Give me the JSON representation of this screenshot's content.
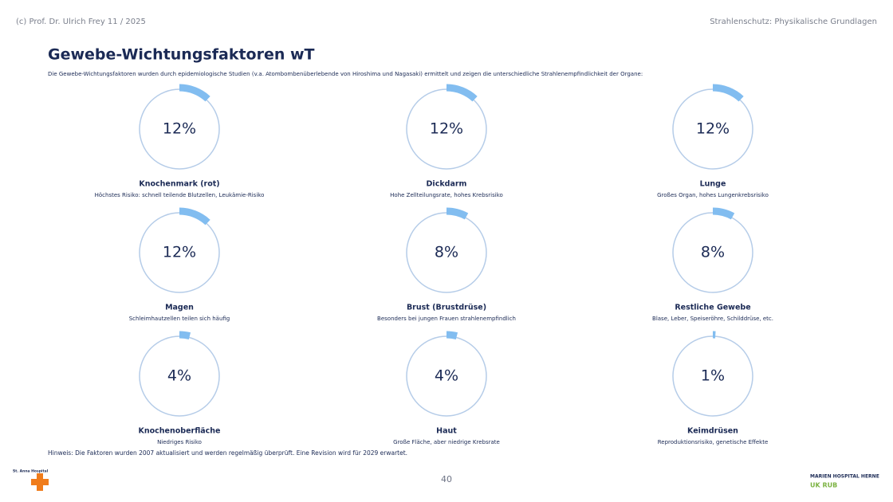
{
  "header": {
    "left": "(c) Prof. Dr. Ulrich Frey 11 / 2025",
    "right": "Strahlenschutz: Physikalische Grundlagen"
  },
  "title": "Gewebe-Wichtungsfaktoren wT",
  "subtitle": "Die Gewebe-Wichtungsfaktoren wurden durch epidemiologische Studien (v.a. Atombombenüberlebende von Hiroshima und Nagasaki) ermittelt und zeigen die unterschiedliche Strahlenempfindlichkeit der Organe:",
  "items": [
    {
      "value": 12,
      "value_label": "12%",
      "label": "Knochenmark (rot)",
      "description": "Höchstes Risiko: schnell teilende Blutzellen, Leukämie-Risiko"
    },
    {
      "value": 12,
      "value_label": "12%",
      "label": "Dickdarm",
      "description": "Hohe Zellteilungsrate, hohes Krebsrisiko"
    },
    {
      "value": 12,
      "value_label": "12%",
      "label": "Lunge",
      "description": "Großes Organ, hohes Lungenkrebsrisiko"
    },
    {
      "value": 12,
      "value_label": "12%",
      "label": "Magen",
      "description": "Schleimhautzellen teilen sich häufig"
    },
    {
      "value": 8,
      "value_label": "8%",
      "label": "Brust (Brustdrüse)",
      "description": "Besonders bei jungen Frauen strahlenempfindlich"
    },
    {
      "value": 8,
      "value_label": "8%",
      "label": "Restliche Gewebe",
      "description": "Blase, Leber, Speiseröhre, Schilddrüse, etc."
    },
    {
      "value": 4,
      "value_label": "4%",
      "label": "Knochenoberfläche",
      "description": "Niedriges Risiko"
    },
    {
      "value": 4,
      "value_label": "4%",
      "label": "Haut",
      "description": "Große Fläche, aber niedrige Krebsrate"
    },
    {
      "value": 1,
      "value_label": "1%",
      "label": "Keimdrüsen",
      "description": "Reproduktionsrisiko, genetische Effekte"
    }
  ],
  "note": "Hinweis: Die Faktoren wurden 2007 aktualisiert und werden regelmäßig überprüft. Eine Revision wird für 2029 erwartet.",
  "page_number": "40",
  "logos": {
    "left": "St. Anna Hospital",
    "right_top": "MARIEN HOSPITAL HERNE",
    "right_bottom": "UK RUB"
  },
  "arc_color": "#82bdf0",
  "ring_color": "#b5cce8"
}
